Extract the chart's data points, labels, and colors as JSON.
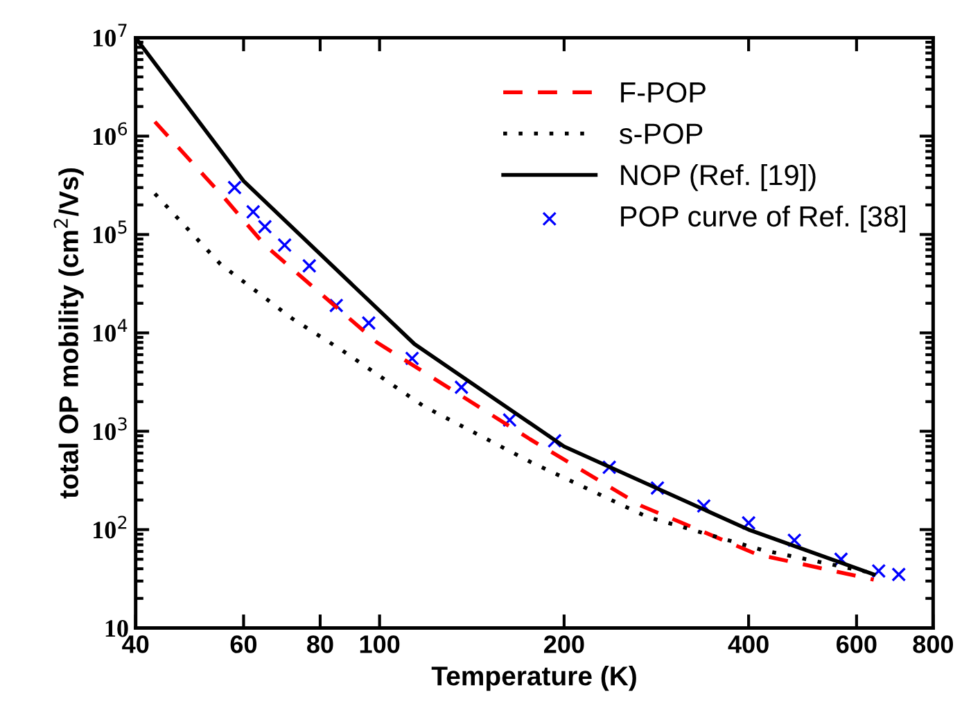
{
  "chart_data": {
    "type": "line",
    "xlabel": "Temperature (K)",
    "ylabel": "total OP mobility (cm$^{2}$/Vs)",
    "log": "xy",
    "grid": false,
    "legend": "top right",
    "xlim": [
      40,
      800
    ],
    "xticks": [
      40,
      60,
      80,
      100,
      200,
      400,
      600,
      800
    ],
    "ylim": [
      10,
      10000000
    ],
    "yticks": [
      10,
      {
        "value": 100,
        "label": "10$^{2}$"
      },
      {
        "value": 1000,
        "label": "10$^{3}$"
      },
      {
        "value": 10000,
        "label": "10$^{4}$"
      },
      {
        "value": 100000,
        "label": "10$^{5}$"
      },
      {
        "value": 1000000,
        "label": "10$^{6}$"
      },
      {
        "value": 10000000,
        "label": "10$^{7}$"
      }
    ],
    "series": [
      {
        "name": "F-POP",
        "color": "#ff0000",
        "line_style": "dashed",
        "marker": "none",
        "x": [
          43,
          56,
          65,
          99,
          176,
          267,
          413,
          640
        ],
        "values": [
          1400000,
          230000,
          78000,
          8000,
          830,
          175,
          56,
          31
        ]
      },
      {
        "name": "s-POP",
        "color": "#000000",
        "line_style": "dotted",
        "marker": "none",
        "x": [
          43,
          55,
          72,
          87,
          118,
          176,
          273,
          421,
          640
        ],
        "values": [
          260000,
          50000,
          14000,
          6600,
          1800,
          490,
          135,
          62,
          36
        ]
      },
      {
        "name": "NOP (Ref. [19])",
        "color": "#000000",
        "line_style": "solid",
        "marker": "none",
        "x": [
          40,
          60,
          114,
          200,
          400,
          640
        ],
        "values": [
          10000000,
          350000,
          7700,
          700,
          100,
          35
        ]
      },
      {
        "name": "POP curve of Ref. [38]",
        "color": "#0000ff",
        "type": "scatter",
        "marker": "cross",
        "x": [
          58,
          62.2,
          65,
          70,
          76.8,
          85,
          96,
          113,
          136,
          163,
          193,
          237,
          284,
          338,
          400,
          475,
          566,
          652,
          703
        ],
        "values": [
          300000,
          170000,
          120000,
          78000,
          48000,
          19000,
          12600,
          5500,
          2800,
          1300,
          800,
          430,
          265,
          174,
          117,
          78,
          50,
          38,
          35
        ]
      }
    ]
  }
}
